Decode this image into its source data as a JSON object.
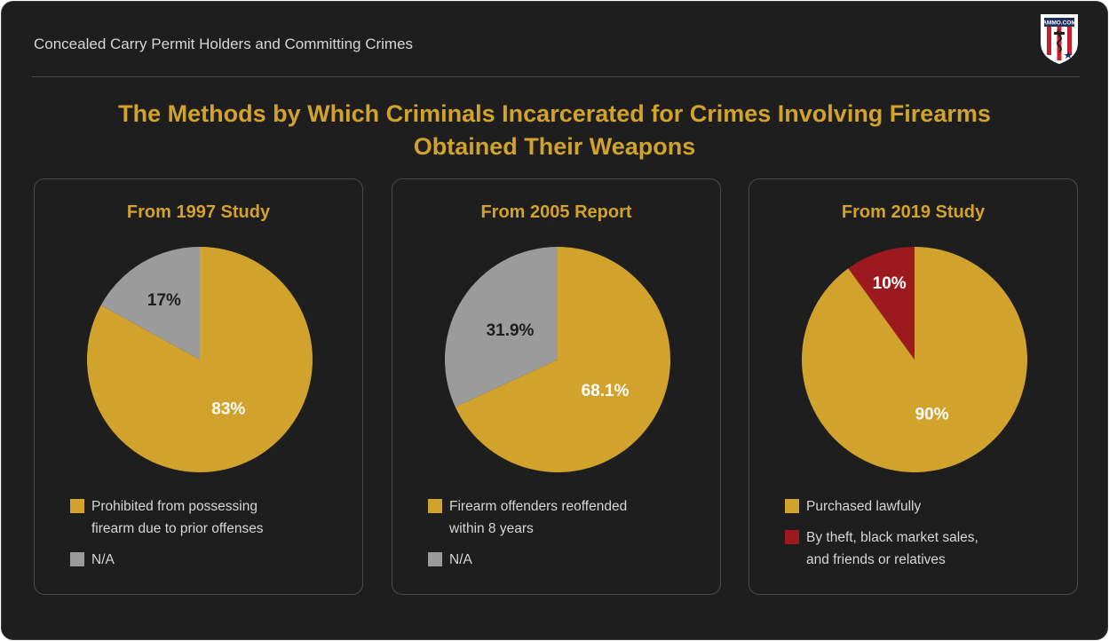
{
  "header": {
    "title": "Concealed Carry Permit Holders and Committing Crimes",
    "logo_text": "AMMO.COM"
  },
  "main_title": {
    "line1": "The Methods by Which Criminals Incarcerated for Crimes Involving Firearms",
    "line2": "Obtained Their Weapons"
  },
  "colors": {
    "accent": "#d1a22c",
    "gray": "#9b9b9b",
    "red": "#9c1a1d",
    "background": "#1e1e1e"
  },
  "chart_data": [
    {
      "type": "pie",
      "title": "From 1997 Study",
      "slices": [
        {
          "label": "Prohibited from possessing firearm due to prior offenses",
          "value": 83,
          "display": "83%",
          "color": "#d1a22c",
          "text_color": "#ffffff"
        },
        {
          "label": "N/A",
          "value": 17,
          "display": "17%",
          "color": "#9b9b9b",
          "text_color": "#1e1e1e"
        }
      ],
      "legend": [
        {
          "line1": "Prohibited from possessing",
          "line2": "firearm due to prior offenses",
          "color": "#d1a22c"
        },
        {
          "line1": "N/A",
          "line2": "",
          "color": "#9b9b9b"
        }
      ]
    },
    {
      "type": "pie",
      "title": "From 2005 Report",
      "slices": [
        {
          "label": "Firearm offenders reoffended within 8 years",
          "value": 68.1,
          "display": "68.1%",
          "color": "#d1a22c",
          "text_color": "#ffffff"
        },
        {
          "label": "N/A",
          "value": 31.9,
          "display": "31.9%",
          "color": "#9b9b9b",
          "text_color": "#1e1e1e"
        }
      ],
      "legend": [
        {
          "line1": "Firearm offenders reoffended",
          "line2": "within 8 years",
          "color": "#d1a22c"
        },
        {
          "line1": "N/A",
          "line2": "",
          "color": "#9b9b9b"
        }
      ]
    },
    {
      "type": "pie",
      "title": "From 2019 Study",
      "slices": [
        {
          "label": "Purchased lawfully",
          "value": 90,
          "display": "90%",
          "color": "#d1a22c",
          "text_color": "#ffffff"
        },
        {
          "label": "By theft, black market sales, and friends or relatives",
          "value": 10,
          "display": "10%",
          "color": "#9c1a1d",
          "text_color": "#ffffff"
        }
      ],
      "legend": [
        {
          "line1": "Purchased lawfully",
          "line2": "",
          "color": "#d1a22c"
        },
        {
          "line1": "By theft, black market sales,",
          "line2": "and friends or relatives",
          "color": "#9c1a1d"
        }
      ]
    }
  ]
}
